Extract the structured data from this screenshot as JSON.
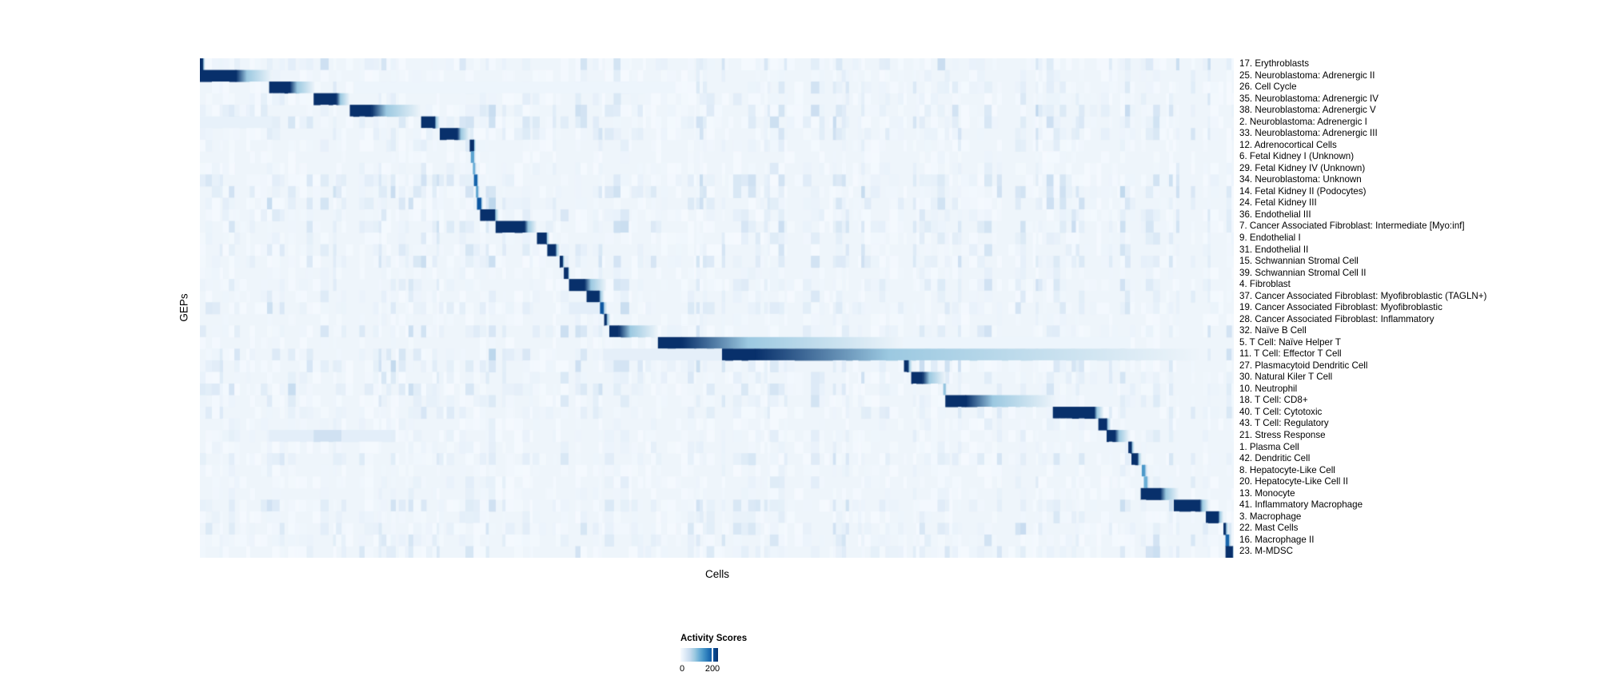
{
  "chart_data": {
    "type": "heatmap",
    "title": "",
    "xlabel": "Cells",
    "ylabel": "GEPs",
    "legend_position": "bottom-center",
    "grid": false,
    "colorbar": {
      "title": "Activity Scores",
      "ticks": [
        "0",
        "200"
      ],
      "min": 0,
      "max": 200,
      "tick_fraction_of_bar": 0.85
    },
    "colormap": [
      "#f7fbff",
      "#deebf7",
      "#c6dbef",
      "#9ecae1",
      "#6baed6",
      "#4292c6",
      "#2171b5",
      "#08519c",
      "#08306b"
    ],
    "heatmap_background": "#eef5fb",
    "noise": {
      "seed": 11,
      "column_min_width": 3,
      "column_max_width": 11,
      "max_value": 0.3
    },
    "rows": [
      {
        "label": "17. Erythroblasts",
        "block": [
          0.0,
          0.003
        ],
        "tail": 0.005,
        "strength": 1.0
      },
      {
        "label": "25. Neuroblastoma: Adrenergic II",
        "block": [
          0.0,
          0.035
        ],
        "tail": 0.07,
        "strength": 1.0
      },
      {
        "label": "26. Cell Cycle",
        "block": [
          0.067,
          0.087
        ],
        "tail": 0.111,
        "strength": 1.0,
        "bands": [
          [
            0.15,
            0.46,
            0.05
          ]
        ]
      },
      {
        "label": "35. Neuroblastoma: Adrenergic IV",
        "block": [
          0.11,
          0.132
        ],
        "tail": 0.145,
        "strength": 1.0
      },
      {
        "label": "38. Neuroblastoma: Adrenergic V",
        "block": [
          0.145,
          0.166
        ],
        "tail": 0.214,
        "strength": 1.0
      },
      {
        "label": "2. Neuroblastoma: Adrenergic I",
        "block": [
          0.214,
          0.227
        ],
        "tail": 0.232,
        "strength": 1.0,
        "bands": [
          [
            0.0,
            0.07,
            0.08
          ]
        ]
      },
      {
        "label": "33. Neuroblastoma: Adrenergic III",
        "block": [
          0.232,
          0.249
        ],
        "tail": 0.261,
        "strength": 1.0
      },
      {
        "label": "12. Adrenocortical Cells",
        "block": [
          0.261,
          0.265
        ],
        "tail": 0.267,
        "strength": 1.0
      },
      {
        "label": "6. Fetal Kidney I (Unknown)",
        "block": [
          0.262,
          0.265
        ],
        "tail": 0.267,
        "strength": 0.55
      },
      {
        "label": "29. Fetal Kidney IV (Unknown)",
        "block": [
          0.264,
          0.266
        ],
        "tail": 0.268,
        "strength": 0.5
      },
      {
        "label": "34. Neuroblastoma: Unknown",
        "block": [
          0.265,
          0.268
        ],
        "tail": 0.27,
        "strength": 0.8
      },
      {
        "label": "14. Fetal Kidney II (Podocytes)",
        "block": [
          0.267,
          0.269
        ],
        "tail": 0.271,
        "strength": 0.55
      },
      {
        "label": "24. Fetal Kidney III",
        "block": [
          0.268,
          0.272
        ],
        "tail": 0.274,
        "strength": 0.85
      },
      {
        "label": "36. Endothelial III",
        "block": [
          0.271,
          0.285
        ],
        "tail": 0.289,
        "strength": 1.0
      },
      {
        "label": "7. Cancer Associated Fibroblast: Intermediate [Myo:inf]",
        "block": [
          0.286,
          0.314
        ],
        "tail": 0.326,
        "strength": 1.0
      },
      {
        "label": "9. Endothelial I",
        "block": [
          0.326,
          0.335
        ],
        "tail": 0.338,
        "strength": 1.0
      },
      {
        "label": "31. Endothelial II",
        "block": [
          0.336,
          0.344
        ],
        "tail": 0.348,
        "strength": 1.0
      },
      {
        "label": "15. Schwannian Stromal Cell",
        "block": [
          0.348,
          0.351
        ],
        "tail": 0.353,
        "strength": 1.0
      },
      {
        "label": "39. Schwannian Stromal Cell II",
        "block": [
          0.352,
          0.356
        ],
        "tail": 0.358,
        "strength": 1.0
      },
      {
        "label": "4. Fibroblast",
        "block": [
          0.357,
          0.372
        ],
        "tail": 0.393,
        "strength": 1.0
      },
      {
        "label": "37. Cancer Associated Fibroblast: Myofibroblastic (TAGLN+)",
        "block": [
          0.374,
          0.386
        ],
        "tail": 0.391,
        "strength": 1.0
      },
      {
        "label": "19. Cancer Associated Fibroblast: Myofibroblastic",
        "block": [
          0.387,
          0.39
        ],
        "tail": 0.394,
        "strength": 0.85,
        "bands": [
          [
            0.357,
            0.387,
            0.1
          ]
        ]
      },
      {
        "label": "28. Cancer Associated Fibroblast: Inflammatory",
        "block": [
          0.391,
          0.393
        ],
        "tail": 0.397,
        "strength": 1.0
      },
      {
        "label": "32. Naïve B Cell",
        "block": [
          0.396,
          0.405
        ],
        "tail": 0.443,
        "strength": 1.0
      },
      {
        "label": "5. T Cell: Naïve Helper T",
        "block": [
          0.443,
          0.466
        ],
        "tail": 0.68,
        "strength": 1.0,
        "bands": [
          [
            0.58,
            0.9,
            0.05
          ]
        ]
      },
      {
        "label": "11. T Cell: Effector T Cell",
        "block": [
          0.505,
          0.537
        ],
        "tail": 0.967,
        "strength": 1.0,
        "bands": [
          [
            0.39,
            0.505,
            0.09
          ]
        ]
      },
      {
        "label": "27. Plasmacytoid Dendritic Cell",
        "block": [
          0.681,
          0.685
        ],
        "tail": 0.689,
        "strength": 1.0
      },
      {
        "label": "30. Natural Kiler T Cell",
        "block": [
          0.688,
          0.699
        ],
        "tail": 0.721,
        "strength": 1.0
      },
      {
        "label": "10. Neutrophil",
        "block": [
          0.719,
          0.721
        ],
        "tail": 0.723,
        "strength": 0.4
      },
      {
        "label": "18. T Cell: CD8+",
        "block": [
          0.721,
          0.741
        ],
        "tail": 0.828,
        "strength": 1.0
      },
      {
        "label": "40. T Cell: Cytotoxic",
        "block": [
          0.825,
          0.865
        ],
        "tail": 0.874,
        "strength": 1.0
      },
      {
        "label": "43. T Cell: Regulatory",
        "block": [
          0.869,
          0.877
        ],
        "tail": 0.881,
        "strength": 1.0
      },
      {
        "label": "21. Stress Response",
        "block": [
          0.877,
          0.885
        ],
        "tail": 0.899,
        "strength": 1.0,
        "bands": [
          [
            0.067,
            0.11,
            0.1
          ],
          [
            0.11,
            0.137,
            0.2
          ],
          [
            0.137,
            0.186,
            0.1
          ]
        ]
      },
      {
        "label": "1. Plasma Cell",
        "block": [
          0.898,
          0.901
        ],
        "tail": 0.904,
        "strength": 1.0
      },
      {
        "label": "42. Dendritic Cell",
        "block": [
          0.901,
          0.907
        ],
        "tail": 0.911,
        "strength": 1.0
      },
      {
        "label": "8. Hepatocyte-Like Cell",
        "block": [
          0.911,
          0.914
        ],
        "tail": 0.917,
        "strength": 0.6
      },
      {
        "label": "20. Hepatocyte-Like Cell II",
        "block": [
          0.913,
          0.916
        ],
        "tail": 0.919,
        "strength": 0.5
      },
      {
        "label": "13. Monocyte",
        "block": [
          0.91,
          0.929
        ],
        "tail": 0.947,
        "strength": 1.0
      },
      {
        "label": "41. Inflammatory Macrophage",
        "block": [
          0.942,
          0.967
        ],
        "tail": 0.976,
        "strength": 1.0
      },
      {
        "label": "3. Macrophage",
        "block": [
          0.973,
          0.985
        ],
        "tail": 0.99,
        "strength": 1.0
      },
      {
        "label": "22. Mast Cells",
        "block": [
          0.99,
          0.992
        ],
        "tail": 0.995,
        "strength": 1.0
      },
      {
        "label": "16. Macrophage II",
        "block": [
          0.992,
          0.995
        ],
        "tail": 0.998,
        "strength": 0.8
      },
      {
        "label": "23. M-MDSC",
        "block": [
          0.992,
          0.999
        ],
        "tail": 1.0,
        "strength": 1.0
      }
    ]
  },
  "colors": {
    "page_background": "#ffffff",
    "text": "#000000",
    "accent_dark_blue": "#08306b"
  }
}
